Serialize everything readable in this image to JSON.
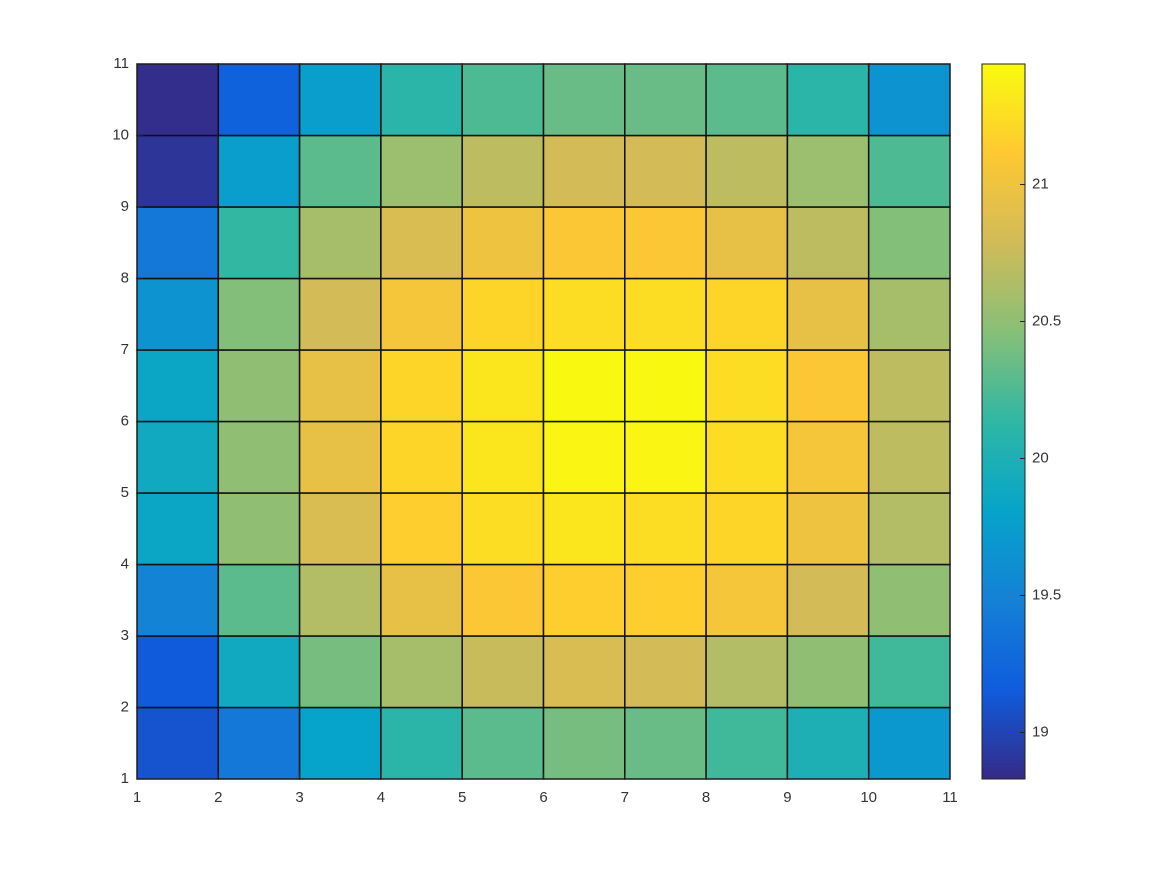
{
  "chart_data": {
    "type": "heatmap",
    "colormap": "parula",
    "xlim": [
      1,
      11
    ],
    "ylim": [
      1,
      11
    ],
    "xticks": [
      1,
      2,
      3,
      4,
      5,
      6,
      7,
      8,
      9,
      10,
      11
    ],
    "yticks": [
      1,
      2,
      3,
      4,
      5,
      6,
      7,
      8,
      9,
      10,
      11
    ],
    "values": [
      [
        19.1,
        19.4,
        19.8,
        20.1,
        20.3,
        20.4,
        20.35,
        20.2,
        20.0,
        19.7
      ],
      [
        19.15,
        19.9,
        20.4,
        20.6,
        20.75,
        20.85,
        20.8,
        20.65,
        20.5,
        20.2
      ],
      [
        19.5,
        20.3,
        20.65,
        20.95,
        21.1,
        21.15,
        21.15,
        21.05,
        20.8,
        20.5
      ],
      [
        19.85,
        20.5,
        20.85,
        21.15,
        21.25,
        21.3,
        21.25,
        21.2,
        21.0,
        20.65
      ],
      [
        19.9,
        20.5,
        20.95,
        21.2,
        21.3,
        21.4,
        21.4,
        21.25,
        21.05,
        20.7
      ],
      [
        19.85,
        20.5,
        20.95,
        21.2,
        21.3,
        21.42,
        21.42,
        21.25,
        21.1,
        20.7
      ],
      [
        19.65,
        20.45,
        20.8,
        21.05,
        21.2,
        21.25,
        21.25,
        21.2,
        20.95,
        20.6
      ],
      [
        19.4,
        20.15,
        20.6,
        20.85,
        21.0,
        21.1,
        21.1,
        20.95,
        20.7,
        20.45
      ],
      [
        18.9,
        19.75,
        20.3,
        20.55,
        20.7,
        20.8,
        20.8,
        20.7,
        20.55,
        20.25
      ],
      [
        18.85,
        19.2,
        19.75,
        20.1,
        20.25,
        20.35,
        20.35,
        20.3,
        20.1,
        19.65
      ]
    ],
    "clim": [
      18.83,
      21.44
    ],
    "cticks": [
      19,
      19.5,
      20,
      20.5,
      21
    ]
  }
}
